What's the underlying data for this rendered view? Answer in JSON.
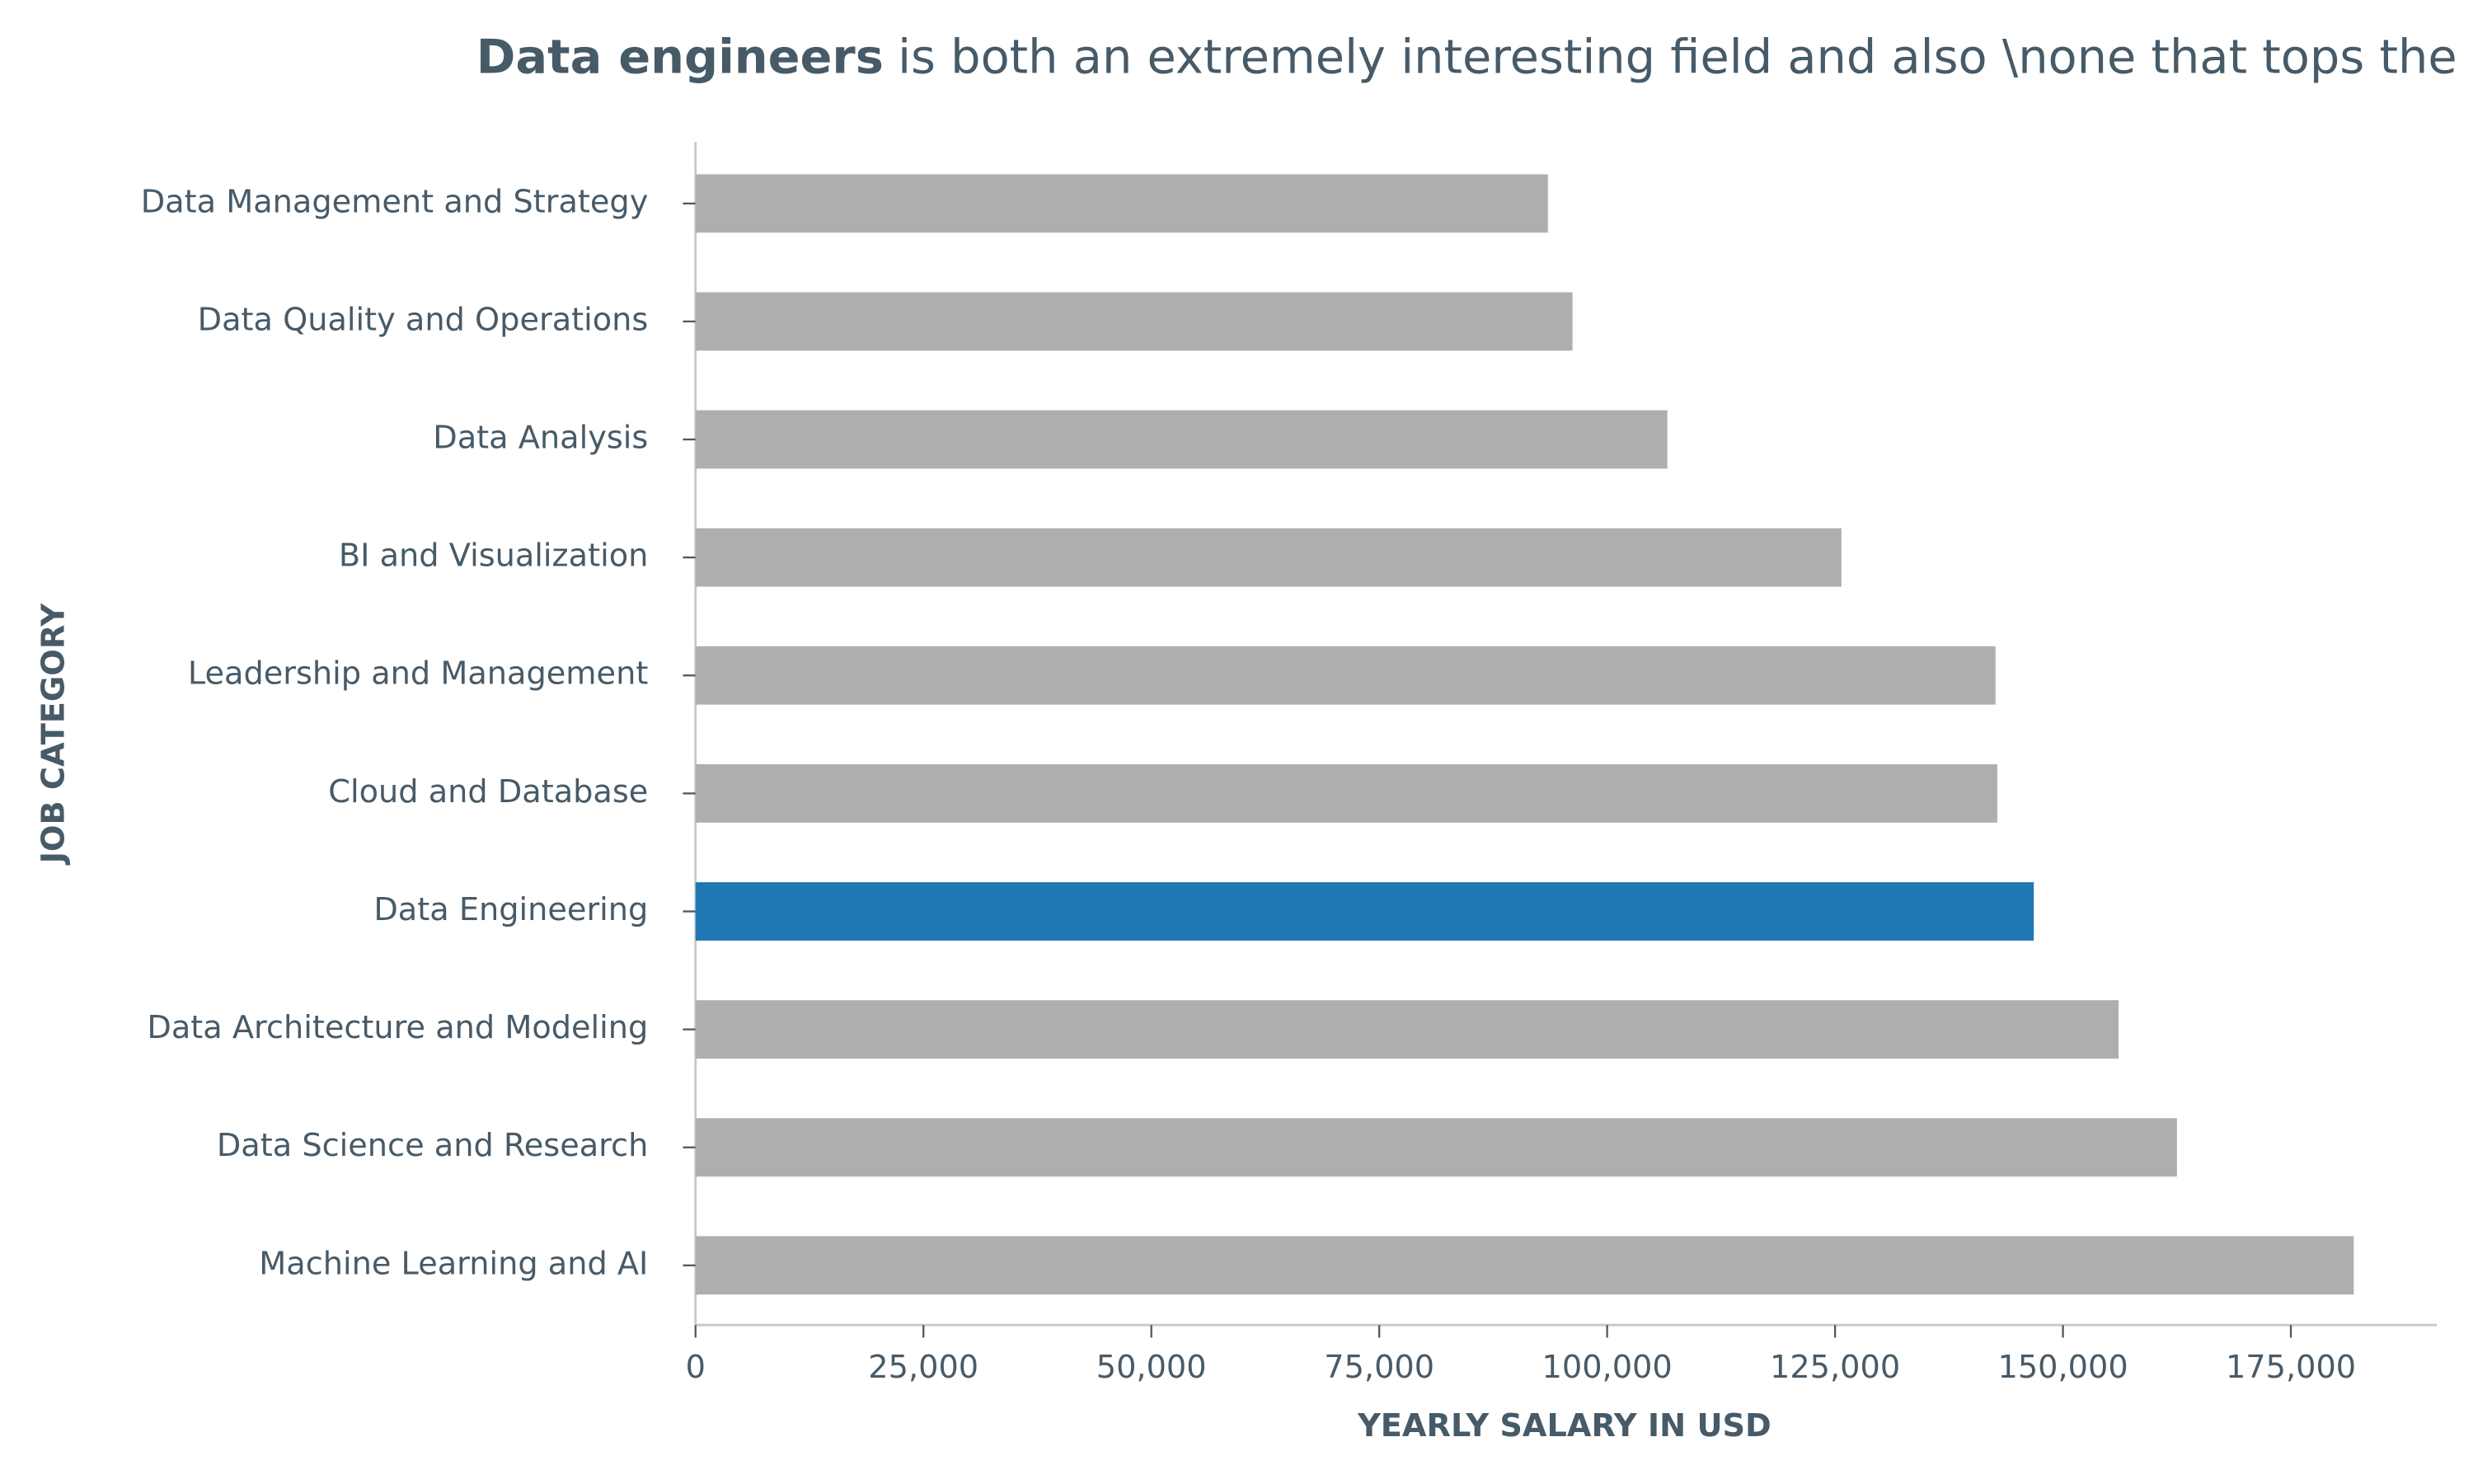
{
  "chart_data": {
    "type": "barh",
    "title_bold": "Data engineers",
    "title": "is both an extremely interesting field and also \\none that tops the",
    "x_label": "YEARLY SALARY IN USD",
    "y_label": "JOB CATEGORY",
    "categories": [
      "Data Management and Strategy",
      "Data Quality and Operations",
      "Data Analysis",
      "BI and Visualization",
      "Leadership and Management",
      "Cloud and Database",
      "Data Engineering",
      "Data Architecture and Modeling",
      "Data Science and Research",
      "Machine Learning and AI"
    ],
    "values": [
      93500,
      96200,
      106600,
      125700,
      142600,
      142800,
      146800,
      156100,
      162500,
      181900
    ],
    "colors": [
      "#aeaeae",
      "#aeaeae",
      "#aeaeae",
      "#aeaeae",
      "#aeaeae",
      "#aeaeae",
      "#1f77b4",
      "#aeaeae",
      "#aeaeae",
      "#aeaeae"
    ],
    "xlim": [
      0,
      191000
    ],
    "xticks": [
      0,
      {
        "value": 25000,
        "label": "25,000"
      },
      {
        "value": 50000,
        "label": "50,000"
      },
      {
        "value": 75000,
        "label": "75,000"
      },
      {
        "value": 100000,
        "label": "100,000"
      },
      {
        "value": 125000,
        "label": "125,000"
      },
      {
        "value": 150000,
        "label": "150,000"
      },
      {
        "value": 175000,
        "label": "175,000"
      }
    ]
  }
}
